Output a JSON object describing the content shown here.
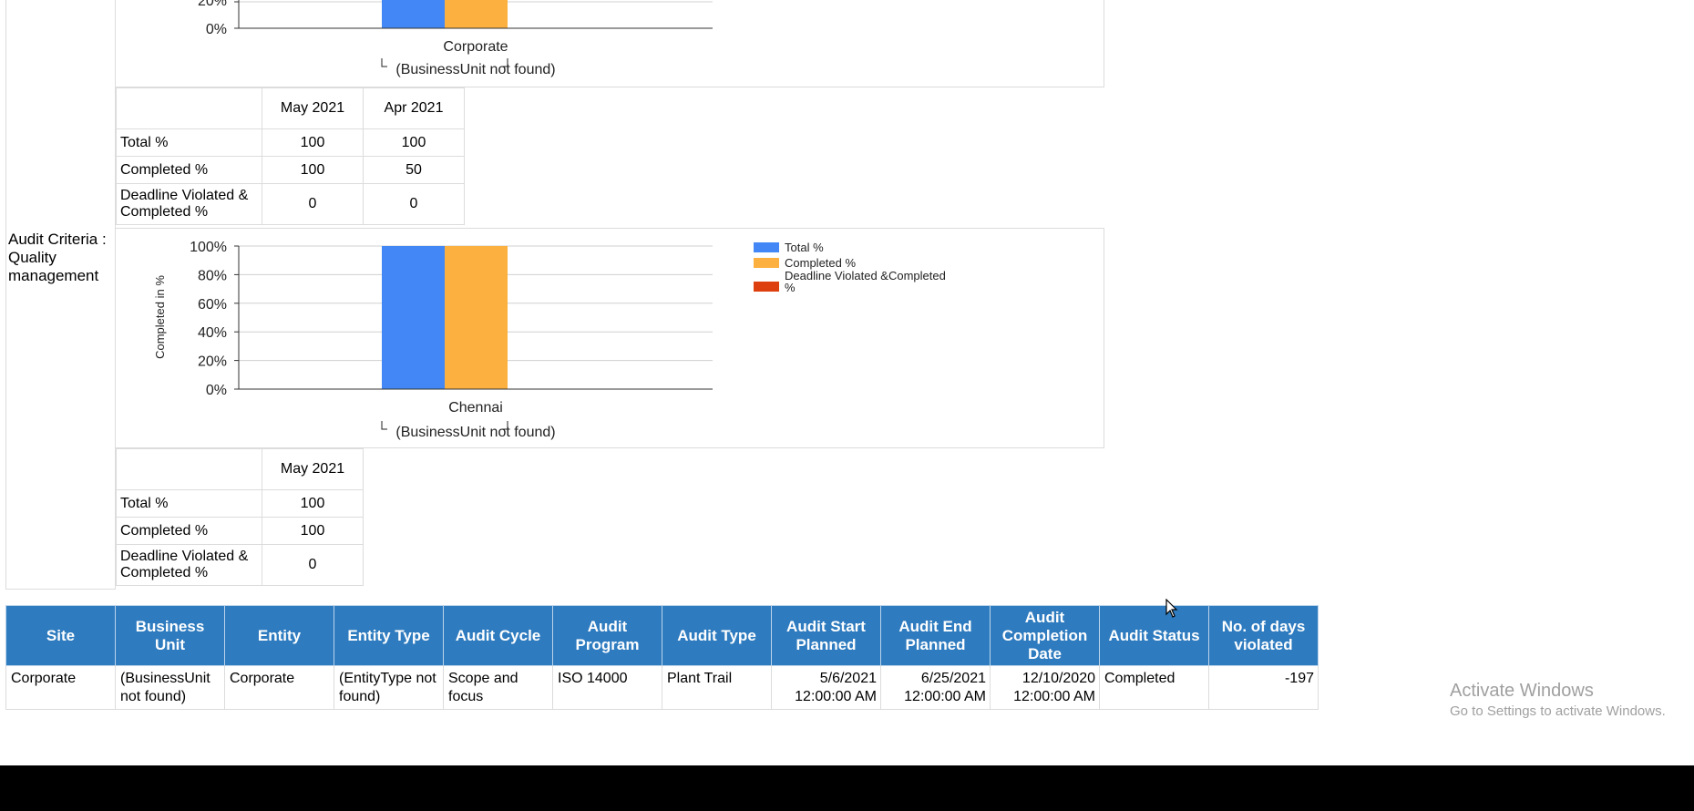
{
  "colors": {
    "total": "#4287f5",
    "completed": "#fbb040",
    "violated": "#dd3f0e",
    "header_bg": "#2e7bbf"
  },
  "top_section": {
    "chart": {
      "ytick_visible": [
        "20%",
        "0%"
      ],
      "category": "Corporate",
      "sublabel": "(BusinessUnit not found)"
    },
    "table": {
      "columns": [
        "May 2021",
        "Apr 2021"
      ],
      "rows": [
        {
          "label": "Total %",
          "values": [
            "100",
            "100"
          ]
        },
        {
          "label": "Completed %",
          "values": [
            "100",
            "50"
          ]
        },
        {
          "label": "Deadline Violated & Completed %",
          "values": [
            "0",
            "0"
          ]
        }
      ]
    }
  },
  "quality_section": {
    "title": "Audit Criteria : Quality management",
    "table": {
      "columns": [
        "May 2021"
      ],
      "rows": [
        {
          "label": "Total %",
          "values": [
            "100"
          ]
        },
        {
          "label": "Completed %",
          "values": [
            "100"
          ]
        },
        {
          "label": "Deadline Violated & Completed %",
          "values": [
            "0"
          ]
        }
      ]
    }
  },
  "chart_data": {
    "type": "bar",
    "ylabel": "Completed in %",
    "yticks": [
      "100%",
      "80%",
      "60%",
      "40%",
      "20%",
      "0%"
    ],
    "ylim": [
      0,
      100
    ],
    "categories": [
      "Chennai"
    ],
    "category_group_label": "(BusinessUnit not found)",
    "series": [
      {
        "name": "Total %",
        "values": [
          100
        ]
      },
      {
        "name": "Completed %",
        "values": [
          100
        ]
      },
      {
        "name": "Deadline Violated &Completed %",
        "values": [
          0
        ]
      }
    ],
    "legend_position": "right"
  },
  "grid": {
    "headers": [
      "Site",
      "Business Unit",
      "Entity",
      "Entity Type",
      "Audit Cycle",
      "Audit Program",
      "Audit Type",
      "Audit Start Planned",
      "Audit End Planned",
      "Audit Completion Date",
      "Audit Status",
      "No. of days violated"
    ],
    "row": {
      "site": "Corporate",
      "business_unit": "(BusinessUnit not found)",
      "entity": "Corporate",
      "entity_type": "(EntityType not found)",
      "audit_cycle": "Scope and focus",
      "audit_program": "ISO 14000",
      "audit_type": "Plant Trail",
      "start_planned": "5/6/2021 12:00:00 AM",
      "end_planned": "6/25/2021 12:00:00 AM",
      "completion_date": "12/10/2020 12:00:00 AM",
      "status": "Completed",
      "days_violated": "-197"
    }
  },
  "watermark": {
    "line1": "Activate Windows",
    "line2": "Go to Settings to activate Windows."
  }
}
